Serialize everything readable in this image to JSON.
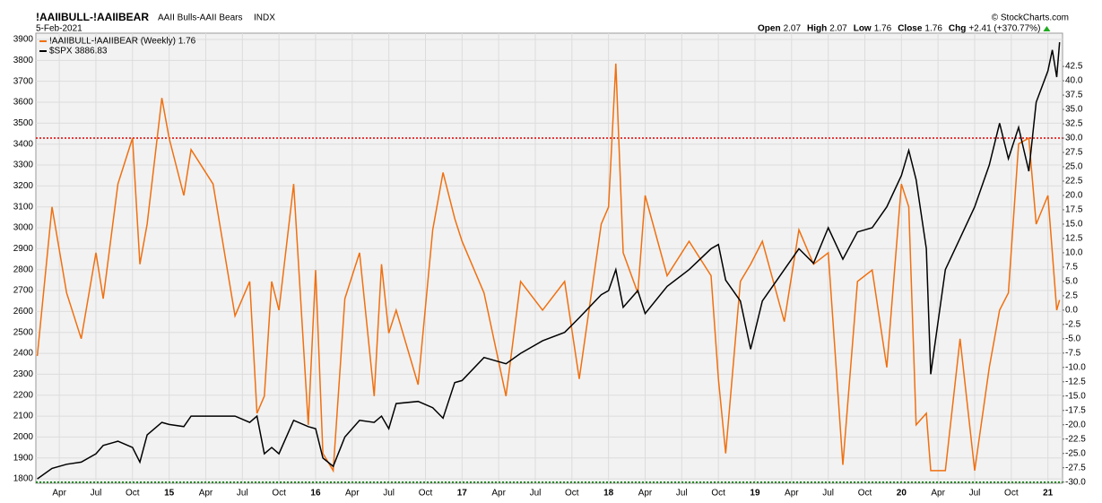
{
  "chart_data": {
    "type": "line",
    "title": "!AAIIBULL-!AAIIBEAR",
    "subtitle": "AAII Bulls-AAII Bears",
    "exchange": "INDX",
    "source": "© StockCharts.com",
    "date": "5-Feb-2021",
    "quote": [
      {
        "label": "Open",
        "text": "2.07"
      },
      {
        "label": "High",
        "text": "2.07"
      },
      {
        "label": "Low",
        "text": "1.76"
      },
      {
        "label": "Close",
        "text": "1.76"
      },
      {
        "label": "Chg",
        "text": "+2.41 (+370.77%)"
      }
    ],
    "x": [
      2014.1,
      2014.2,
      2014.3,
      2014.4,
      2014.5,
      2014.55,
      2014.65,
      2014.75,
      2014.8,
      2014.85,
      2014.95,
      2015.0,
      2015.1,
      2015.15,
      2015.3,
      2015.45,
      2015.55,
      2015.6,
      2015.65,
      2015.7,
      2015.75,
      2015.85,
      2015.95,
      2016.0,
      2016.05,
      2016.12,
      2016.2,
      2016.3,
      2016.4,
      2016.45,
      2016.5,
      2016.55,
      2016.7,
      2016.8,
      2016.87,
      2016.95,
      2017.0,
      2017.15,
      2017.3,
      2017.4,
      2017.55,
      2017.7,
      2017.8,
      2017.95,
      2018.0,
      2018.05,
      2018.1,
      2018.2,
      2018.25,
      2018.4,
      2018.55,
      2018.7,
      2018.75,
      2018.8,
      2018.9,
      2018.97,
      2019.05,
      2019.2,
      2019.3,
      2019.4,
      2019.5,
      2019.6,
      2019.7,
      2019.8,
      2019.9,
      2020.0,
      2020.05,
      2020.1,
      2020.17,
      2020.2,
      2020.3,
      2020.4,
      2020.5,
      2020.6,
      2020.67,
      2020.73,
      2020.8,
      2020.87,
      2020.92,
      2021.0,
      2021.03,
      2021.06,
      2021.08
    ],
    "series": [
      {
        "name": "!AAIIBULL-!AAIIBEAR (Weekly) 1.76",
        "color": "#f07010",
        "axis": "y2",
        "values": [
          -8,
          18,
          3,
          -5,
          10,
          2,
          22,
          30,
          8,
          15,
          37,
          30,
          20,
          28,
          22,
          -1,
          5,
          -18,
          -15,
          5,
          0,
          22,
          -20,
          7,
          -25,
          -28,
          2,
          10,
          -15,
          8,
          -4,
          0,
          -13,
          14,
          24,
          16,
          12,
          3,
          -15,
          5,
          0,
          5,
          -12,
          15,
          18,
          43,
          10,
          3,
          20,
          6,
          12,
          6,
          -12,
          -25,
          5,
          8,
          12,
          -2,
          14,
          8,
          10,
          -27,
          5,
          7,
          -10,
          22,
          18,
          -20,
          -18,
          -28,
          -28,
          -5,
          -28,
          -10,
          0,
          3,
          29,
          30,
          15,
          20,
          10,
          0,
          1.76
        ]
      },
      {
        "name": "$SPX 3886.83",
        "color": "#000000",
        "axis": "y",
        "values": [
          1800,
          1850,
          1870,
          1880,
          1920,
          1960,
          1980,
          1950,
          1880,
          2010,
          2070,
          2060,
          2050,
          2100,
          2100,
          2100,
          2070,
          2100,
          1920,
          1950,
          1920,
          2080,
          2050,
          2040,
          1900,
          1860,
          2000,
          2080,
          2070,
          2100,
          2040,
          2160,
          2170,
          2140,
          2090,
          2260,
          2270,
          2380,
          2350,
          2400,
          2460,
          2500,
          2570,
          2680,
          2700,
          2800,
          2620,
          2700,
          2590,
          2720,
          2800,
          2900,
          2920,
          2750,
          2650,
          2420,
          2650,
          2800,
          2900,
          2830,
          3000,
          2850,
          2980,
          3000,
          3100,
          3250,
          3370,
          3230,
          2900,
          2300,
          2800,
          2950,
          3100,
          3300,
          3500,
          3330,
          3480,
          3270,
          3600,
          3750,
          3850,
          3720,
          3886.83
        ]
      }
    ],
    "xlim": [
      2014.09,
      2021.1
    ],
    "xticks": [
      {
        "value": 2014.25,
        "label": "Apr"
      },
      {
        "value": 2014.5,
        "label": "Jul"
      },
      {
        "value": 2014.75,
        "label": "Oct"
      },
      {
        "value": 2015,
        "label": "15"
      },
      {
        "value": 2015.25,
        "label": "Apr"
      },
      {
        "value": 2015.5,
        "label": "Jul"
      },
      {
        "value": 2015.75,
        "label": "Oct"
      },
      {
        "value": 2016,
        "label": "16"
      },
      {
        "value": 2016.25,
        "label": "Apr"
      },
      {
        "value": 2016.5,
        "label": "Jul"
      },
      {
        "value": 2016.75,
        "label": "Oct"
      },
      {
        "value": 2017,
        "label": "17"
      },
      {
        "value": 2017.25,
        "label": "Apr"
      },
      {
        "value": 2017.5,
        "label": "Jul"
      },
      {
        "value": 2017.75,
        "label": "Oct"
      },
      {
        "value": 2018,
        "label": "18"
      },
      {
        "value": 2018.25,
        "label": "Apr"
      },
      {
        "value": 2018.5,
        "label": "Jul"
      },
      {
        "value": 2018.75,
        "label": "Oct"
      },
      {
        "value": 2019,
        "label": "19"
      },
      {
        "value": 2019.25,
        "label": "Apr"
      },
      {
        "value": 2019.5,
        "label": "Jul"
      },
      {
        "value": 2019.75,
        "label": "Oct"
      },
      {
        "value": 2020,
        "label": "20"
      },
      {
        "value": 2020.25,
        "label": "Apr"
      },
      {
        "value": 2020.5,
        "label": "Jul"
      },
      {
        "value": 2020.75,
        "label": "Oct"
      },
      {
        "value": 2021,
        "label": "21"
      }
    ],
    "ylim": [
      1779,
      3930
    ],
    "yticks": [
      1800,
      1900,
      2000,
      2100,
      2200,
      2300,
      2400,
      2500,
      2600,
      2700,
      2800,
      2900,
      3000,
      3100,
      3200,
      3300,
      3400,
      3500,
      3600,
      3700,
      3800,
      3900
    ],
    "y2lim": [
      -30.2,
      48.3
    ],
    "y2ticks": [
      {
        "value": -30,
        "label": "-30.0"
      },
      -27.5,
      {
        "value": -25,
        "label": "-25.0"
      },
      -22.5,
      {
        "value": -20,
        "label": "-20.0"
      },
      -17.5,
      {
        "value": -15,
        "label": "-15.0"
      },
      -12.5,
      {
        "value": -10,
        "label": "-10.0"
      },
      -7.5,
      {
        "value": -5,
        "label": "-5.0"
      },
      -2.5,
      {
        "value": 0,
        "label": "0.0"
      },
      2.5,
      {
        "value": 5,
        "label": "5.0"
      },
      7.5,
      {
        "value": 10,
        "label": "10.0"
      },
      12.5,
      {
        "value": 15,
        "label": "15.0"
      },
      17.5,
      {
        "value": 20,
        "label": "20.0"
      },
      22.5,
      {
        "value": 25,
        "label": "25.0"
      },
      27.5,
      {
        "value": 30,
        "label": "30.0"
      },
      32.5,
      {
        "value": 35,
        "label": "35.0"
      },
      37.5,
      {
        "value": 40,
        "label": "40.0"
      },
      42.5
    ],
    "hlines": [
      {
        "axis": "y2",
        "value": 30,
        "color": "#e00000"
      },
      {
        "axis": "y2",
        "value": -30,
        "color": "#008000"
      }
    ],
    "grid": true
  }
}
